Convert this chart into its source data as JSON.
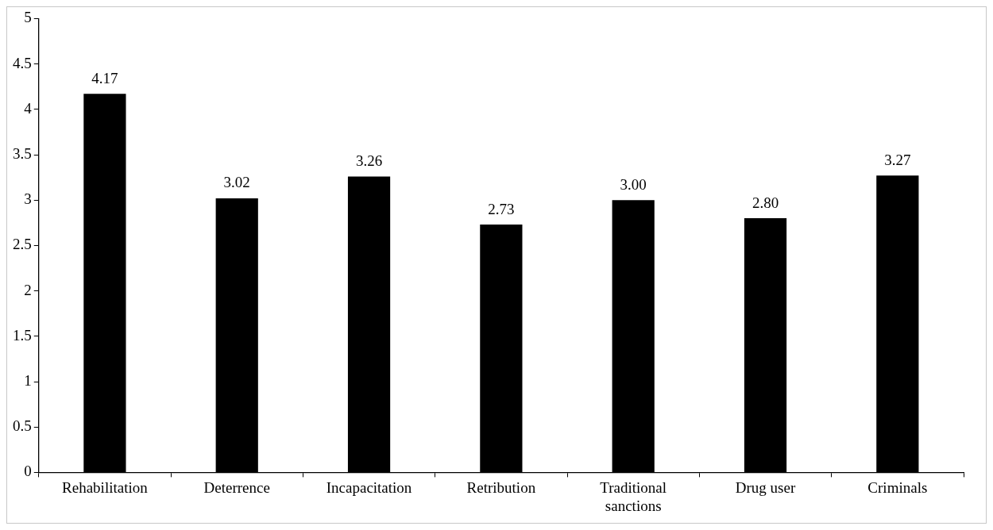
{
  "chart_data": {
    "type": "bar",
    "categories": [
      "Rehabilitation",
      "Deterrence",
      "Incapacitation",
      "Retribution",
      "Traditional sanctions",
      "Drug user",
      "Criminals"
    ],
    "values": [
      4.17,
      3.02,
      3.26,
      2.73,
      3.0,
      2.8,
      3.27
    ],
    "value_labels": [
      "4.17",
      "3.02",
      "3.26",
      "2.73",
      "3.00",
      "2.80",
      "3.27"
    ],
    "color": "#000000",
    "ylim": [
      0,
      5
    ],
    "yticks": [
      0,
      0.5,
      1,
      1.5,
      2,
      2.5,
      3,
      3.5,
      4,
      4.5,
      5
    ],
    "legend": false
  }
}
